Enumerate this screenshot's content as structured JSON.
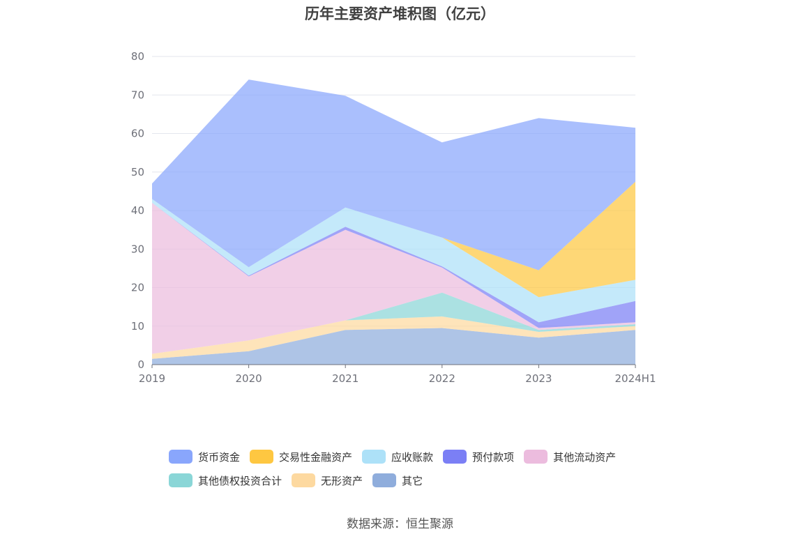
{
  "chart_data": {
    "type": "area",
    "stacked": true,
    "title": "历年主要资产堆积图（亿元）",
    "x": [
      "2019",
      "2020",
      "2021",
      "2022",
      "2023",
      "2024H1"
    ],
    "ylim": [
      0,
      80
    ],
    "yticks": [
      "0",
      "10",
      "20",
      "30",
      "40",
      "50",
      "60",
      "70",
      "80"
    ],
    "grid": true,
    "legend_position": "bottom",
    "series": [
      {
        "name": "其它",
        "color": "#8faddc",
        "values": [
          1.5,
          3.5,
          9.0,
          9.5,
          7.0,
          9.0
        ]
      },
      {
        "name": "无形资产",
        "color": "#fdd9a0",
        "values": [
          1.3,
          2.8,
          2.5,
          3.0,
          1.5,
          1.0
        ]
      },
      {
        "name": "其他债权投资合计",
        "color": "#8ad6d7",
        "values": [
          0.0,
          0.0,
          0.0,
          6.2,
          0.5,
          0.5
        ]
      },
      {
        "name": "其他流动资产",
        "color": "#ecbcde",
        "values": [
          39.2,
          16.6,
          23.5,
          6.5,
          0.5,
          0.5
        ]
      },
      {
        "name": "预付款项",
        "color": "#7b7ff5",
        "values": [
          0.0,
          0.2,
          0.8,
          0.3,
          1.5,
          5.5
        ]
      },
      {
        "name": "应收账款",
        "color": "#ade1f8",
        "values": [
          1.0,
          2.2,
          5.0,
          7.5,
          6.5,
          5.5
        ]
      },
      {
        "name": "交易性金融资产",
        "color": "#fec741",
        "values": [
          0.0,
          0.0,
          0.0,
          0.0,
          7.0,
          25.5
        ]
      },
      {
        "name": "货币资金",
        "color": "#89a6fc",
        "values": [
          4.0,
          48.7,
          29.0,
          24.7,
          39.5,
          14.0
        ]
      }
    ]
  },
  "legend": {
    "rows": [
      [
        {
          "label": "货币资金",
          "color": "#89a6fc"
        },
        {
          "label": "交易性金融资产",
          "color": "#fec741"
        },
        {
          "label": "应收账款",
          "color": "#ade1f8"
        },
        {
          "label": "预付款项",
          "color": "#7b7ff5"
        },
        {
          "label": "其他流动资产",
          "color": "#ecbcde"
        }
      ],
      [
        {
          "label": "其他债权投资合计",
          "color": "#8ad6d7"
        },
        {
          "label": "无形资产",
          "color": "#fdd9a0"
        },
        {
          "label": "其它",
          "color": "#8faddc"
        }
      ]
    ]
  },
  "source": "数据来源：恒生聚源"
}
